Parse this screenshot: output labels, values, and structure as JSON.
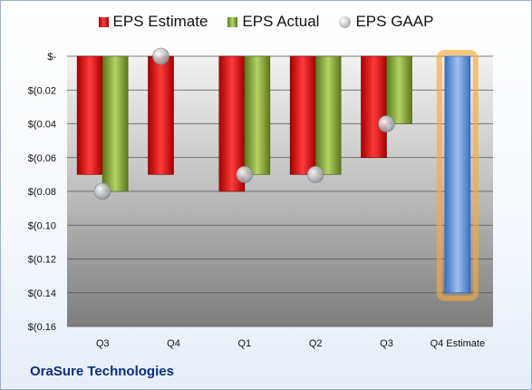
{
  "title": "OraSure Technologies",
  "colors": {
    "estimate": "#e02020",
    "actual": "#92b540",
    "gaap": "#b9bcc2",
    "projection": "#5b8fd8",
    "projection_glow": "#f7a93c"
  },
  "chart_data": {
    "type": "bar",
    "categories": [
      "Q3",
      "Q4",
      "Q1",
      "Q2",
      "Q3",
      "Q4 Estimate"
    ],
    "series": [
      {
        "name": "EPS Estimate",
        "values": [
          -0.07,
          -0.07,
          -0.08,
          -0.07,
          -0.06,
          -0.14
        ]
      },
      {
        "name": "EPS Actual",
        "values": [
          -0.08,
          null,
          -0.07,
          -0.07,
          -0.04,
          null
        ]
      },
      {
        "name": "EPS GAAP",
        "values": [
          -0.08,
          0.0,
          -0.07,
          -0.07,
          -0.04,
          null
        ]
      }
    ],
    "ylim": [
      -0.16,
      0
    ],
    "yticks": [
      0,
      -0.02,
      -0.04,
      -0.06,
      -0.08,
      -0.1,
      -0.12,
      -0.14,
      -0.16
    ],
    "ytick_labels": [
      "$-",
      "$(0.02",
      "$(0.04",
      "$(0.06",
      "$(0.08",
      "$(0.10",
      "$(0.12",
      "$(0.14",
      "$(0.16"
    ],
    "grid": true,
    "legend_position": "top-center"
  }
}
